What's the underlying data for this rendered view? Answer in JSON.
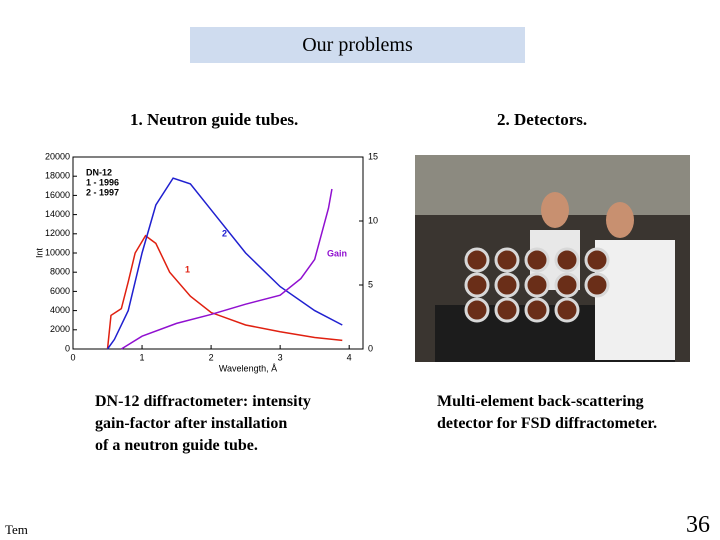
{
  "header": {
    "title": "Our problems"
  },
  "left": {
    "heading": "1. Neutron guide tubes.",
    "caption": [
      "DN-12 diffractometer: intensity",
      "gain-factor after installation",
      "of a neutron guide tube."
    ]
  },
  "right": {
    "heading": "2. Detectors.",
    "caption": [
      "Multi-element back-scattering",
      "detector for FSD diffractometer."
    ]
  },
  "footer": {
    "left": "Tem",
    "page": "36"
  },
  "chart_data": {
    "type": "line",
    "legend": [
      "DN-12",
      "1 - 1996",
      "2 - 1997"
    ],
    "ylabel": "Int",
    "xlabel": "Wavelength, Å",
    "xlim": [
      0,
      4.2
    ],
    "xticks": [
      0,
      1,
      2,
      3,
      4
    ],
    "ylim": [
      0,
      20000
    ],
    "yticks": [
      0,
      2000,
      4000,
      6000,
      8000,
      10000,
      12000,
      14000,
      16000,
      18000,
      20000
    ],
    "y2lim": [
      0,
      15
    ],
    "y2ticks": [
      0,
      5,
      10,
      15
    ],
    "series": [
      {
        "name": "1",
        "color": "#e02010",
        "x": [
          0.5,
          0.55,
          0.7,
          0.8,
          0.9,
          1.05,
          1.2,
          1.4,
          1.7,
          2.0,
          2.5,
          3.0,
          3.5,
          3.9
        ],
        "values": [
          0,
          3500,
          4200,
          7000,
          10000,
          11800,
          11000,
          8000,
          5500,
          3800,
          2500,
          1800,
          1200,
          900
        ]
      },
      {
        "name": "2",
        "color": "#2020d0",
        "x": [
          0.5,
          0.6,
          0.8,
          1.0,
          1.2,
          1.45,
          1.7,
          2.0,
          2.5,
          3.0,
          3.5,
          3.9
        ],
        "values": [
          0,
          1000,
          4000,
          10000,
          15000,
          17800,
          17200,
          14500,
          10000,
          6500,
          4000,
          2500
        ]
      },
      {
        "name": "Gain",
        "color": "#9010d0",
        "axis": "y2",
        "x": [
          0.7,
          1.0,
          1.5,
          2.0,
          2.5,
          3.0,
          3.3,
          3.5,
          3.7,
          3.75
        ],
        "values": [
          0,
          1,
          2,
          2.7,
          3.5,
          4.2,
          5.5,
          7,
          11,
          12.5
        ]
      }
    ]
  }
}
